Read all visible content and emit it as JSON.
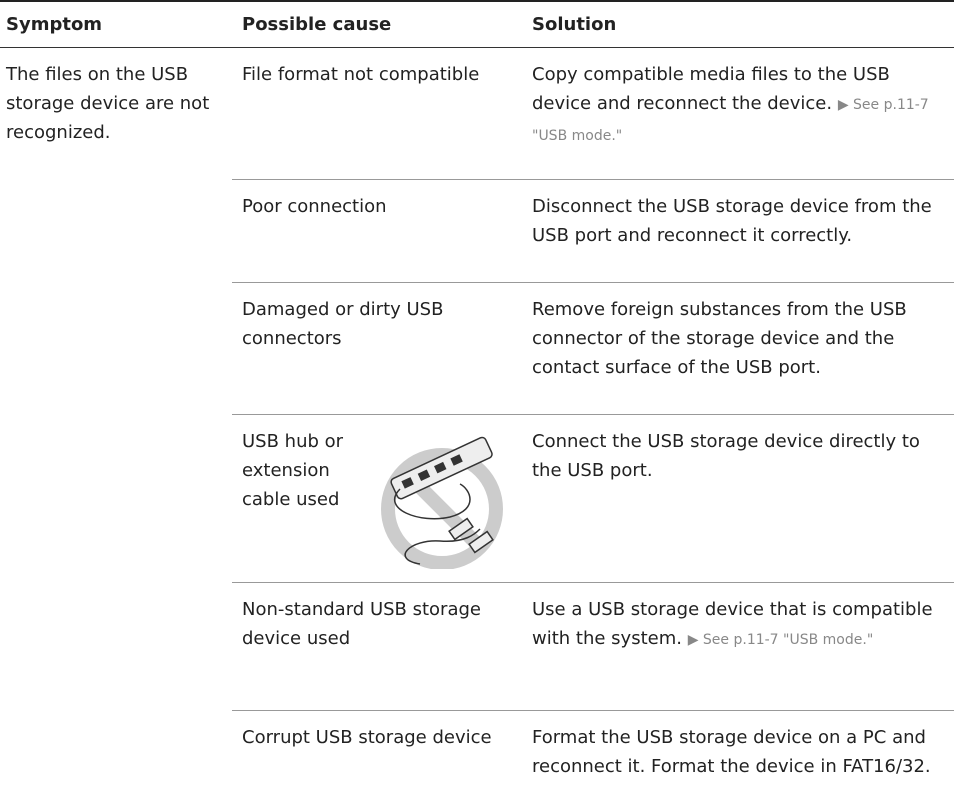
{
  "table": {
    "header": [
      "Symptom",
      "Possible cause",
      "Solution"
    ],
    "symptom": "The files on the USB storage device are not recognized.",
    "rows": [
      {
        "cause": "File format not compatible",
        "solution": "Copy compatible media files to the USB device and reconnect the device.",
        "ref": "▶ See p.11-7 \"USB mode.\""
      },
      {
        "cause": "Poor connection",
        "solution": "Disconnect the USB storage device from the USB port and reconnect it correctly."
      },
      {
        "cause": "Damaged or dirty USB connectors",
        "solution": "Remove foreign substances from the USB connector of the storage device and the contact surface of the USB port."
      },
      {
        "cause": "USB hub or extension cable used",
        "solution": "Connect the USB storage device directly to the USB port."
      },
      {
        "cause": "Non-standard USB storage device used",
        "solution": "Use a USB storage device that is compatible with the system.",
        "ref": "▶ See p.11-7 \"USB mode.\""
      },
      {
        "cause": "Corrupt USB storage device",
        "solution": "Format the USB storage device on a PC and reconnect it. Format the device in FAT16/32."
      }
    ]
  }
}
